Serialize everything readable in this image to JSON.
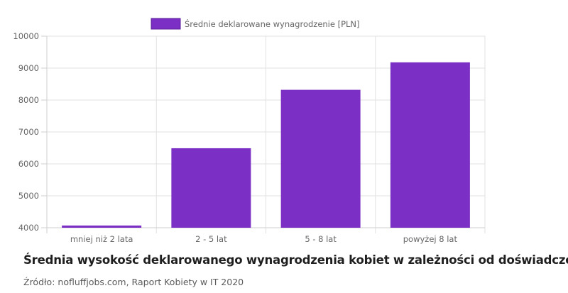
{
  "chart_data": {
    "type": "bar",
    "categories": [
      "mniej niż 2 lata",
      "2 - 5 lat",
      "5 - 8 lat",
      "powyżej 8 lat"
    ],
    "series": [
      {
        "name": "Średnie deklarowane wynagrodzenie [PLN]",
        "values": [
          4070,
          6490,
          8320,
          9180
        ],
        "color": "#7b2fc4"
      }
    ],
    "ylim": [
      4000,
      10000
    ],
    "yticks": [
      4000,
      5000,
      6000,
      7000,
      8000,
      9000,
      10000
    ],
    "grid": true,
    "legend_position": "top-center"
  },
  "caption": {
    "title": "Średnia wysokość deklarowanego wynagrodzenia kobiet w zależności od doświadczenia",
    "source": "Źródło: nofluffjobs.com, Raport Kobiety w IT 2020"
  }
}
